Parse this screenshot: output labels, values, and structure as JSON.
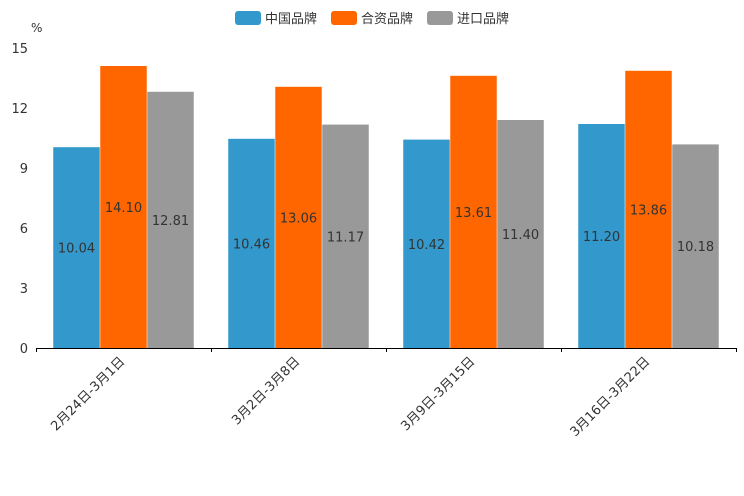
{
  "chart_data": {
    "type": "bar",
    "unit": "%",
    "categories": [
      "2月24日-3月1日",
      "3月2日-3月8日",
      "3月9日-3月15日",
      "3月16日-3月22日"
    ],
    "series": [
      {
        "name": "中国品牌",
        "color": "#3399cc",
        "values": [
          10.04,
          10.46,
          10.42,
          11.2
        ]
      },
      {
        "name": "合资品牌",
        "color": "#ff6600",
        "values": [
          14.1,
          13.06,
          13.61,
          13.86
        ]
      },
      {
        "name": "进口品牌",
        "color": "#999999",
        "values": [
          12.81,
          11.17,
          11.4,
          10.18
        ]
      }
    ],
    "ylim": [
      0,
      15
    ],
    "yticks": [
      0,
      3,
      6,
      9,
      12,
      15
    ],
    "ytick_labels": [
      "0",
      "3",
      "6",
      "9",
      "12",
      "15"
    ],
    "value_labels": [
      [
        "10.04",
        "10.46",
        "10.42",
        "11.20"
      ],
      [
        "14.10",
        "13.06",
        "13.61",
        "13.86"
      ],
      [
        "12.81",
        "11.17",
        "11.40",
        "10.18"
      ]
    ],
    "legend_position": "top-center"
  }
}
